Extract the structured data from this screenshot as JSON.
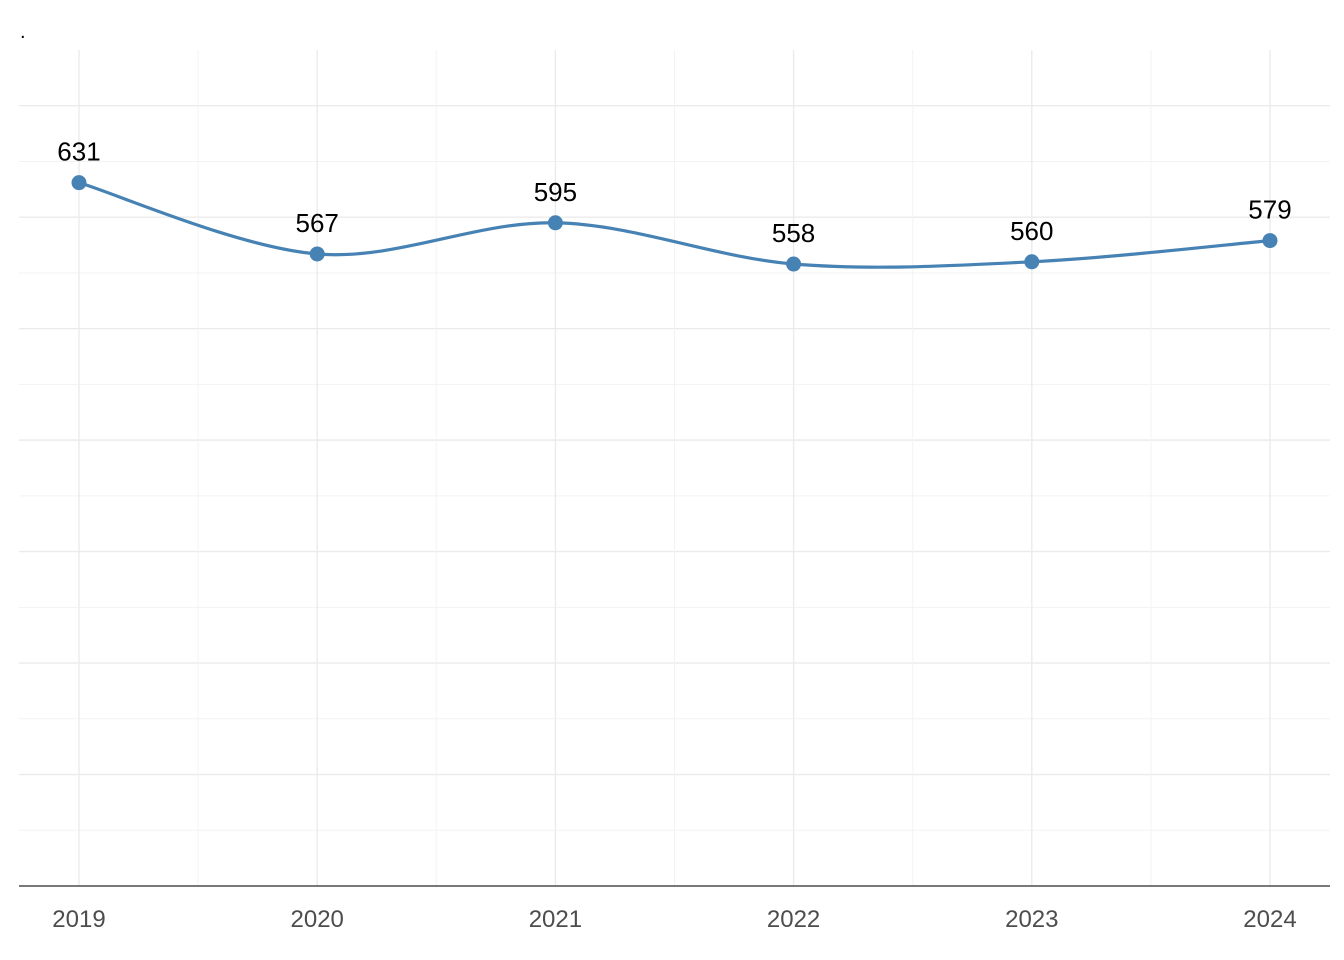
{
  "chart_data": {
    "type": "line",
    "title": ".",
    "xlabel": "",
    "ylabel": "",
    "x": [
      "2019",
      "2020",
      "2021",
      "2022",
      "2023",
      "2024"
    ],
    "series": [
      {
        "values": [
          631,
          567,
          595,
          558,
          560,
          579
        ],
        "color": "#4682b4"
      }
    ],
    "data_labels": [
      "631",
      "567",
      "595",
      "558",
      "560",
      "579"
    ],
    "ylim": [
      0,
      750
    ],
    "smoothed": true,
    "grid": true,
    "y_tick_labels_shown": false,
    "legend": "none"
  }
}
